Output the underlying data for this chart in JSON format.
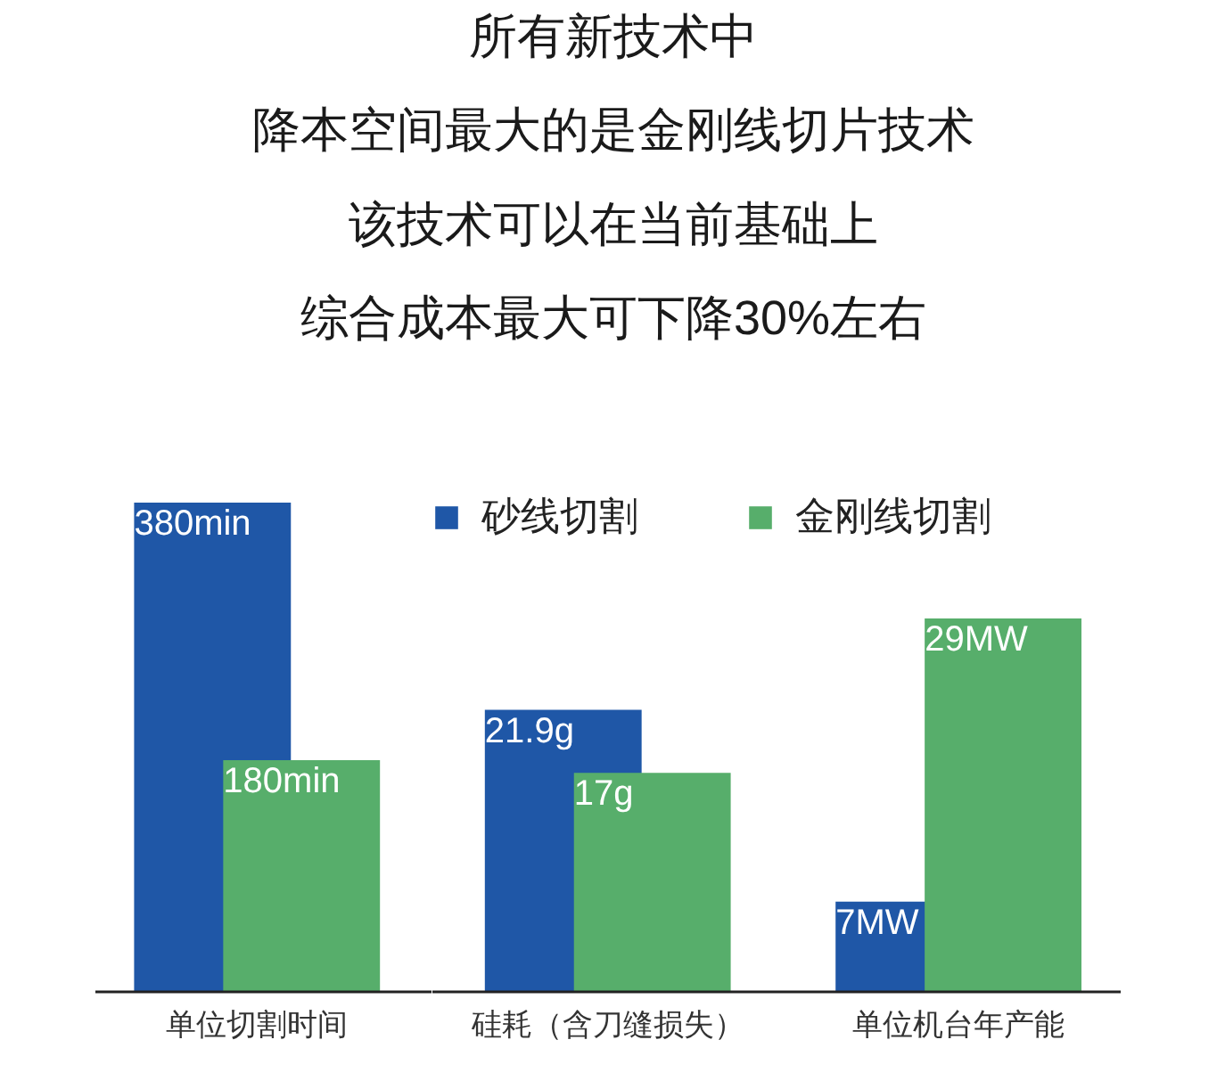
{
  "chart_data": [
    {
      "type": "bar",
      "categories": [
        "单位切割时间"
      ],
      "series": [
        {
          "color": "#1f57a7",
          "values": [
            380
          ],
          "value_labels": [
            "380min"
          ]
        },
        {
          "color": "#57ae6b",
          "values": [
            180
          ],
          "value_labels": [
            "180min"
          ]
        }
      ],
      "tick_labels": "x"
    },
    {
      "type": "bar",
      "title": "所有新技术中",
      "subtitle": "降本空间最大的是金刚线切片技术",
      "annotations": [
        "该技术可以在当前基础上",
        "综合成本最大可下降30%左右"
      ],
      "categories": [
        "硅耗（含刀缝损失）",
        "单位机台年产能"
      ],
      "series": [
        {
          "name": "砂线切割",
          "color": "#1f57a7",
          "values": [
            21.9,
            7
          ],
          "value_labels": [
            "21.9g",
            "7MW"
          ]
        },
        {
          "name": "金刚线切割",
          "color": "#57ae6b",
          "values": [
            17,
            29
          ],
          "value_labels": [
            "17g",
            "29MW"
          ]
        }
      ],
      "tick_labels": "x",
      "legend": "top left"
    }
  ]
}
